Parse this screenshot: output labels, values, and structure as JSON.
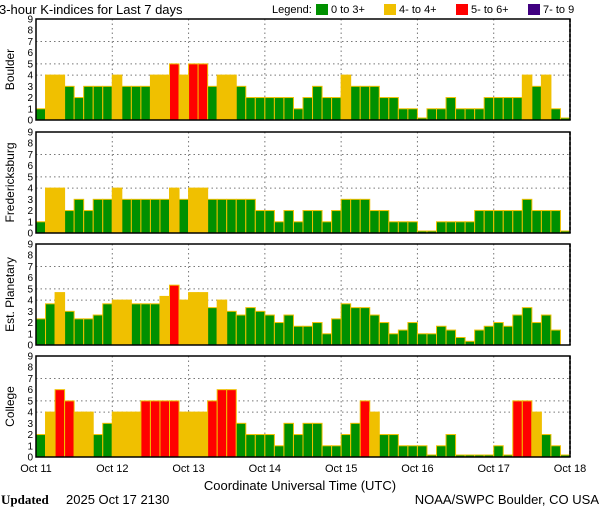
{
  "chart_data": {
    "type": "bar",
    "title": "3-hour K-indices for Last 7 days",
    "xlabel": "Coordinate Universal Time (UTC)",
    "ylim": [
      0,
      9
    ],
    "yticks": [
      "0",
      "1",
      "2",
      "3",
      "4",
      "5",
      "6",
      "7",
      "8",
      "9"
    ],
    "xticks": [
      "Oct 11",
      "Oct 12",
      "Oct 13",
      "Oct 14",
      "Oct 15",
      "Oct 16",
      "Oct 17",
      "Oct 18"
    ],
    "grid_y": [
      4,
      5,
      7
    ],
    "legend": {
      "label": "Legend:",
      "items": [
        {
          "label": "0 to 3+",
          "color": "#009000"
        },
        {
          "label": "4- to 4+",
          "color": "#f0c000"
        },
        {
          "label": "5- to 6+",
          "color": "#ff0000"
        },
        {
          "label": "7- to 9",
          "color": "#400080"
        }
      ]
    },
    "bar_outline": "#f0c000",
    "series": [
      {
        "name": "Boulder",
        "values": [
          1,
          4,
          4,
          3,
          2,
          3,
          3,
          3,
          4,
          3,
          3,
          3,
          4,
          4,
          5,
          4,
          5,
          5,
          3,
          4,
          4,
          3,
          2,
          2,
          2,
          2,
          2,
          1,
          2,
          3,
          2,
          2,
          4,
          3,
          3,
          3,
          2,
          2,
          1,
          1,
          0,
          1,
          1,
          2,
          1,
          1,
          1,
          2,
          2,
          2,
          2,
          4,
          3,
          4,
          1,
          0
        ]
      },
      {
        "name": "Fredericksburg",
        "values": [
          1,
          4,
          4,
          2,
          3,
          2,
          3,
          3,
          4,
          3,
          3,
          3,
          3,
          3,
          4,
          3,
          4,
          4,
          3,
          3,
          3,
          3,
          3,
          2,
          2,
          1,
          2,
          1,
          2,
          2,
          1,
          2,
          3,
          3,
          3,
          2,
          2,
          1,
          1,
          1,
          0,
          0,
          1,
          1,
          1,
          1,
          2,
          2,
          2,
          2,
          2,
          3,
          2,
          2,
          2,
          0
        ]
      },
      {
        "name": "Est. Planetary",
        "values": [
          2.33,
          3.67,
          4.67,
          3,
          2.33,
          2.33,
          2.67,
          3.67,
          4,
          4,
          3.67,
          3.67,
          3.67,
          4.33,
          5.33,
          4,
          4.67,
          4.67,
          3.33,
          4,
          3,
          2.67,
          3.33,
          3,
          2.67,
          2,
          2.67,
          1.67,
          1.67,
          2,
          1,
          2.33,
          3.67,
          3.33,
          3.33,
          2.67,
          2,
          1,
          1.33,
          2,
          1,
          1,
          1.67,
          1.33,
          0.67,
          0.33,
          1.33,
          1.67,
          2,
          1.67,
          2.67,
          3.33,
          2,
          2.67,
          1.33,
          null
        ]
      },
      {
        "name": "College",
        "values": [
          2,
          4,
          6,
          5,
          4,
          4,
          2,
          3,
          4,
          4,
          4,
          5,
          5,
          5,
          5,
          4,
          4,
          4,
          5,
          6,
          6,
          3,
          2,
          2,
          2,
          1,
          3,
          2,
          3,
          3,
          1,
          1,
          2,
          3,
          5,
          4,
          2,
          2,
          1,
          1,
          1,
          0,
          1,
          2,
          0,
          0,
          0,
          0,
          1,
          0,
          5,
          5,
          4,
          2,
          1,
          0
        ]
      }
    ]
  },
  "footer": {
    "updated_label": "Updated",
    "updated_value": "2025 Oct 17 2130",
    "source": "NOAA/SWPC Boulder, CO USA"
  }
}
